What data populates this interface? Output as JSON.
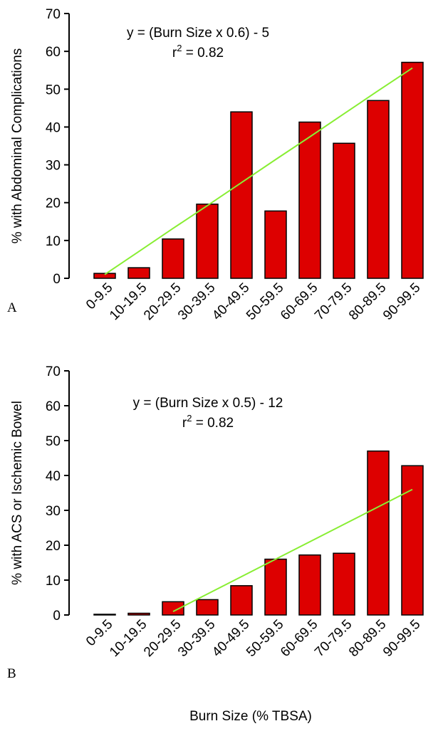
{
  "chart_data": [
    {
      "type": "bar",
      "panel": "A",
      "ylabel": "% with Abdominal Complications",
      "annotation": {
        "equation": "y = (Burn Size x 0.6) - 5",
        "r": "r",
        "sup": "2",
        "fit": " = 0.82"
      },
      "categories": [
        "0-9.5",
        "10-19.5",
        "20-29.5",
        "30-39.5",
        "40-49.5",
        "50-59.5",
        "60-69.5",
        "70-79.5",
        "80-89.5",
        "90-99.5"
      ],
      "values": [
        1.3,
        2.8,
        10.4,
        19.6,
        44,
        17.8,
        41.3,
        35.7,
        47,
        57.1
      ],
      "color": "#dd0000",
      "trendline": {
        "color": "#88ee33",
        "values": [
          1,
          7.1,
          13.2,
          19.2,
          25.3,
          31.4,
          37.4,
          43.5,
          49.6,
          55.6
        ]
      },
      "ylim": [
        0,
        70
      ],
      "yticks": [
        0,
        10,
        20,
        30,
        40,
        50,
        60,
        70
      ]
    },
    {
      "type": "bar",
      "panel": "B",
      "ylabel": "% with ACS or Ischemic Bowel",
      "xlabel": "Burn Size (% TBSA)",
      "annotation": {
        "equation": "y = (Burn Size x 0.5) - 12",
        "r": "r",
        "sup": "2",
        "fit": " = 0.82"
      },
      "categories": [
        "0-9.5",
        "10-19.5",
        "20-29.5",
        "30-39.5",
        "40-49.5",
        "50-59.5",
        "60-69.5",
        "70-79.5",
        "80-89.5",
        "90-99.5"
      ],
      "values": [
        0.2,
        0.5,
        3.8,
        4.4,
        8.4,
        16,
        17.2,
        17.7,
        47,
        42.8
      ],
      "color": "#dd0000",
      "trendline": {
        "color": "#88ee33",
        "values": [
          null,
          null,
          1,
          6,
          11,
          16,
          21,
          26,
          31,
          36
        ]
      },
      "ylim": [
        0,
        70
      ],
      "yticks": [
        0,
        10,
        20,
        30,
        40,
        50,
        60,
        70
      ]
    }
  ]
}
